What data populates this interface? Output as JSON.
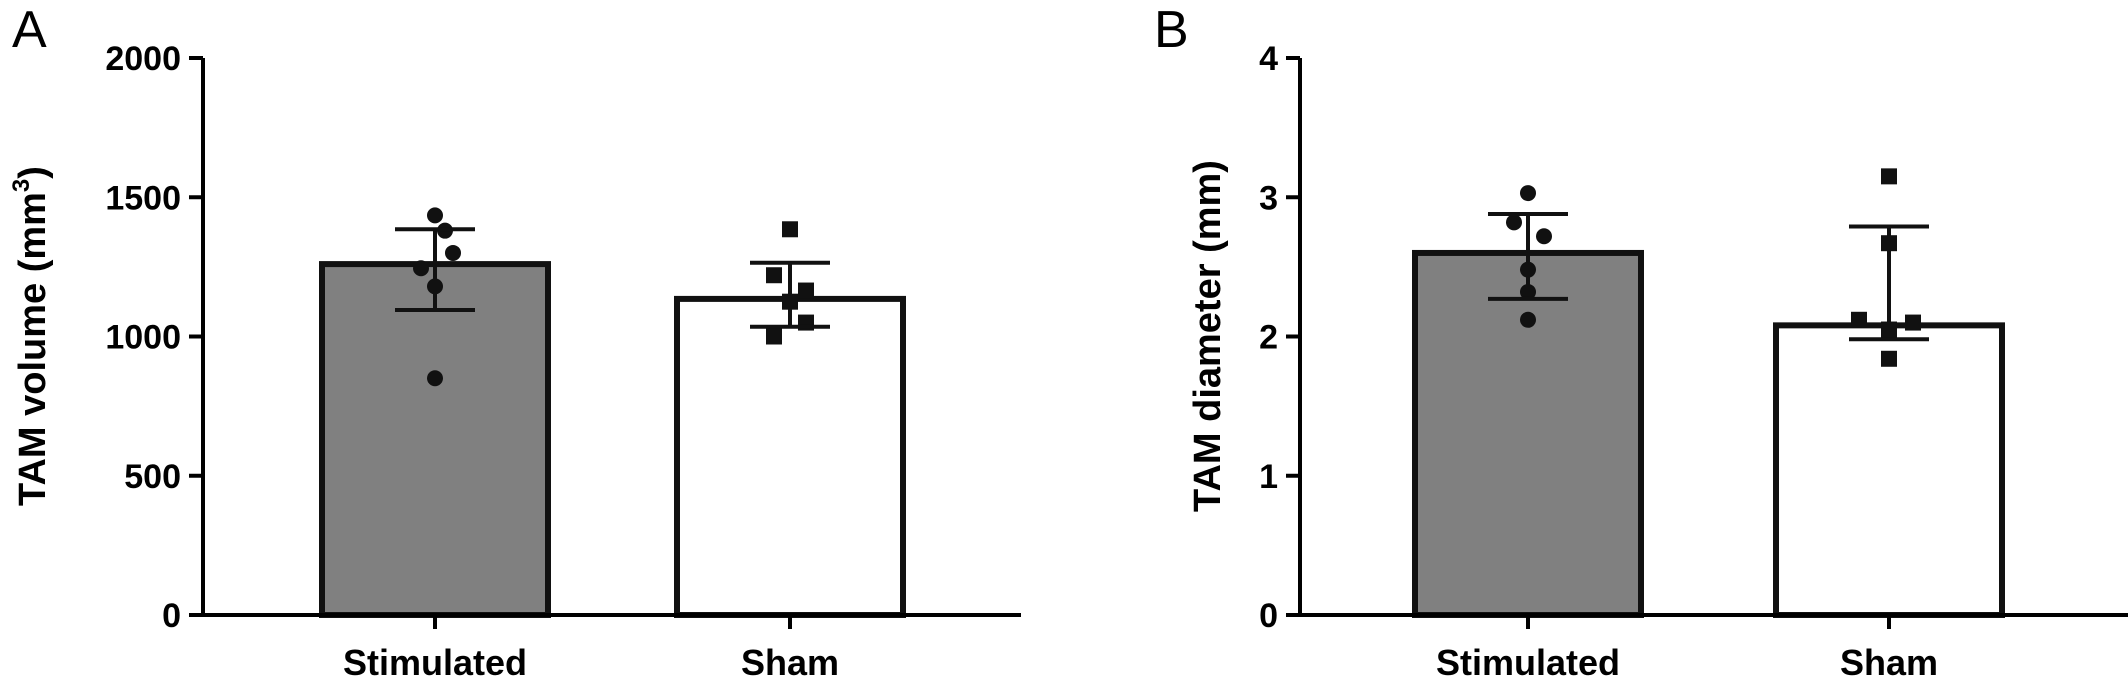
{
  "chart_data": [
    {
      "panel": "A",
      "type": "bar",
      "categories": [
        "Stimulated",
        "Sham"
      ],
      "values": [
        1260,
        1135
      ],
      "error_low": [
        1095,
        1035
      ],
      "error_high": [
        1385,
        1265
      ],
      "points": [
        [
          1435,
          1380,
          1300,
          1245,
          1180,
          850
        ],
        [
          1385,
          1220,
          1165,
          1125,
          1050,
          1000
        ]
      ],
      "point_markers": [
        "circle",
        "square"
      ],
      "bar_colors": [
        "#808080",
        "#ffffff"
      ],
      "ylabel": "TAM volume (mm",
      "ylabel_sup": "3",
      "ylabel_close": ")",
      "ylim": [
        0,
        2000
      ],
      "yticks": [
        "0",
        "500",
        "1000",
        "1500",
        "2000"
      ],
      "ytick_values": [
        0,
        500,
        1000,
        1500,
        2000
      ]
    },
    {
      "panel": "B",
      "type": "bar",
      "categories": [
        "Stimulated",
        "Sham"
      ],
      "values": [
        2.6,
        2.08
      ],
      "error_low": [
        2.27,
        1.98
      ],
      "error_high": [
        2.88,
        2.79
      ],
      "points": [
        [
          3.03,
          2.82,
          2.72,
          2.48,
          2.32,
          2.12
        ],
        [
          3.15,
          2.67,
          2.12,
          2.1,
          2.05,
          1.84
        ]
      ],
      "point_markers": [
        "circle",
        "square"
      ],
      "bar_colors": [
        "#808080",
        "#ffffff"
      ],
      "ylabel": "TAM diameter (mm)",
      "ylim": [
        0,
        4
      ],
      "yticks": [
        "0",
        "1",
        "2",
        "3",
        "4"
      ],
      "ytick_values": [
        0,
        1,
        2,
        3,
        4
      ]
    }
  ]
}
